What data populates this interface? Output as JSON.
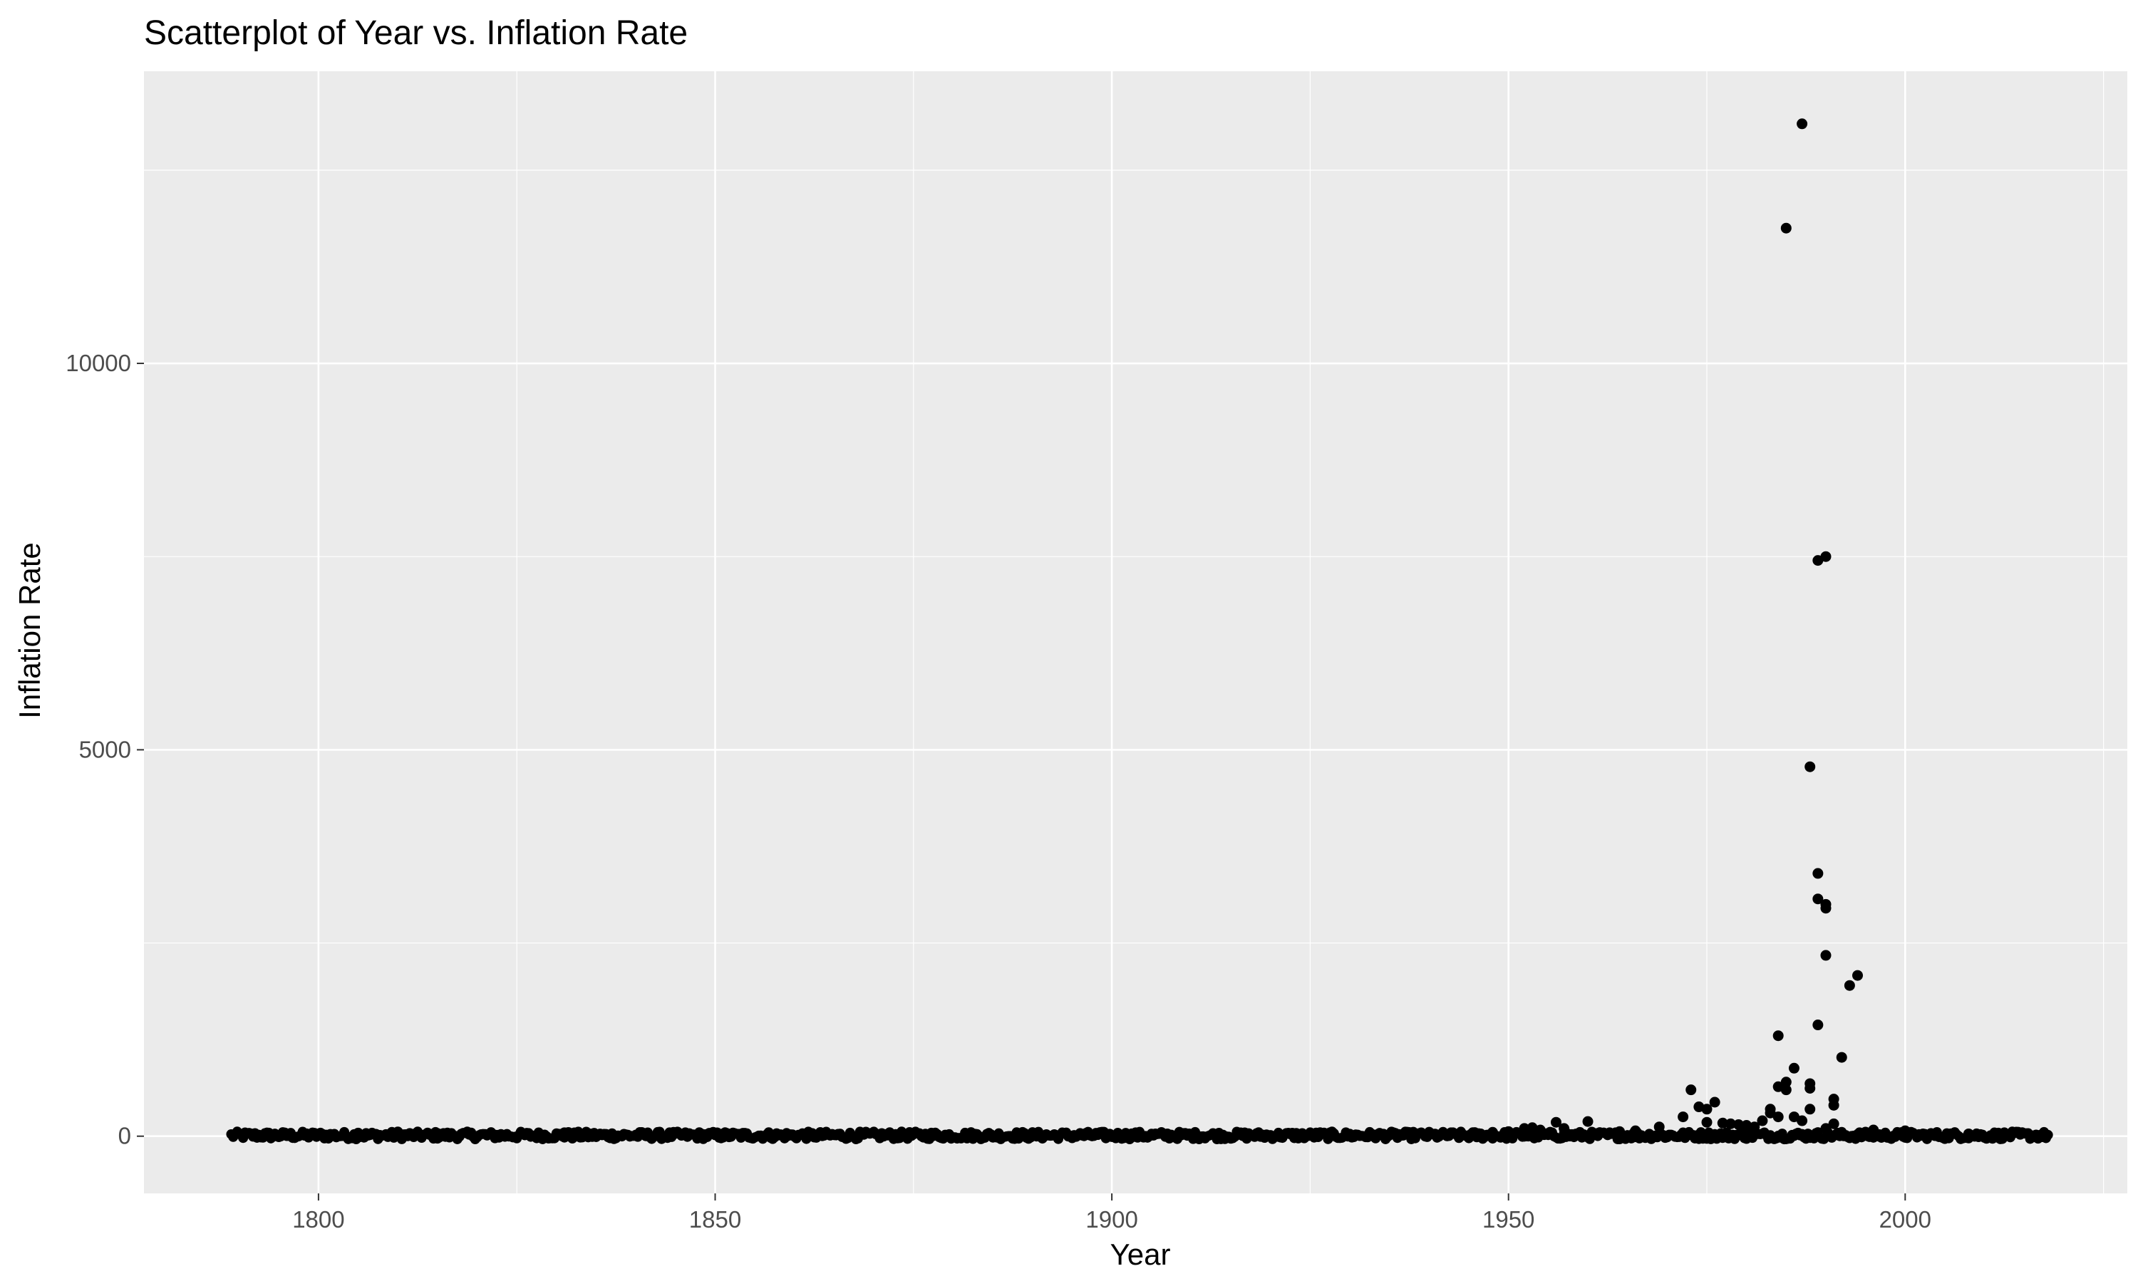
{
  "chart_data": {
    "type": "scatter",
    "title": "Scatterplot of Year vs. Inflation Rate",
    "xlabel": "Year",
    "ylabel": "Inflation Rate",
    "xlim": [
      1778,
      2028
    ],
    "ylim": [
      -740,
      13780
    ],
    "x_ticks": [
      1800,
      1850,
      1900,
      1950,
      2000
    ],
    "x_tick_labels": [
      "1800",
      "1850",
      "1900",
      "1950",
      "2000"
    ],
    "y_ticks": [
      0,
      5000,
      10000
    ],
    "y_tick_labels": [
      "0",
      "5000",
      "10000"
    ],
    "x_minor_ticks": [
      1775,
      1825,
      1875,
      1925,
      1975,
      2025
    ],
    "y_minor_ticks": [
      2500,
      7500,
      12500
    ],
    "grid": true,
    "legend": "none",
    "colors": {
      "panel": "#EBEBEB",
      "grid": "#FFFFFF",
      "point": "#000000"
    },
    "baseline_points": {
      "x_range": [
        1789,
        2018
      ],
      "y_range": [
        -40,
        60
      ]
    },
    "points": [
      {
        "x": 1805,
        "y": 40
      },
      {
        "x": 1810,
        "y": 55
      },
      {
        "x": 1815,
        "y": 35
      },
      {
        "x": 1831,
        "y": 45
      },
      {
        "x": 1851,
        "y": 30
      },
      {
        "x": 1937,
        "y": 35
      },
      {
        "x": 1944,
        "y": 40
      },
      {
        "x": 1948,
        "y": 50
      },
      {
        "x": 1950,
        "y": 60
      },
      {
        "x": 1952,
        "y": 100
      },
      {
        "x": 1953,
        "y": 110
      },
      {
        "x": 1954,
        "y": 80
      },
      {
        "x": 1956,
        "y": 180
      },
      {
        "x": 1957,
        "y": 100
      },
      {
        "x": 1960,
        "y": 190
      },
      {
        "x": 1964,
        "y": 60
      },
      {
        "x": 1966,
        "y": 70
      },
      {
        "x": 1969,
        "y": 120
      },
      {
        "x": 1972,
        "y": 250
      },
      {
        "x": 1973,
        "y": 600
      },
      {
        "x": 1974,
        "y": 380
      },
      {
        "x": 1975,
        "y": 350
      },
      {
        "x": 1976,
        "y": 440
      },
      {
        "x": 1975,
        "y": 180
      },
      {
        "x": 1977,
        "y": 170
      },
      {
        "x": 1978,
        "y": 160
      },
      {
        "x": 1979,
        "y": 150
      },
      {
        "x": 1980,
        "y": 140
      },
      {
        "x": 1981,
        "y": 120
      },
      {
        "x": 1982,
        "y": 200
      },
      {
        "x": 1983,
        "y": 300
      },
      {
        "x": 1983,
        "y": 350
      },
      {
        "x": 1984,
        "y": 1300
      },
      {
        "x": 1984,
        "y": 640
      },
      {
        "x": 1984,
        "y": 250
      },
      {
        "x": 1985,
        "y": 11750
      },
      {
        "x": 1985,
        "y": 700
      },
      {
        "x": 1985,
        "y": 600
      },
      {
        "x": 1986,
        "y": 880
      },
      {
        "x": 1986,
        "y": 250
      },
      {
        "x": 1987,
        "y": 13100
      },
      {
        "x": 1987,
        "y": 200
      },
      {
        "x": 1988,
        "y": 4780
      },
      {
        "x": 1988,
        "y": 680
      },
      {
        "x": 1988,
        "y": 620
      },
      {
        "x": 1988,
        "y": 350
      },
      {
        "x": 1989,
        "y": 7450
      },
      {
        "x": 1989,
        "y": 3400
      },
      {
        "x": 1989,
        "y": 3070
      },
      {
        "x": 1989,
        "y": 1440
      },
      {
        "x": 1990,
        "y": 7500
      },
      {
        "x": 1990,
        "y": 3000
      },
      {
        "x": 1990,
        "y": 2950
      },
      {
        "x": 1990,
        "y": 2340
      },
      {
        "x": 1990,
        "y": 100
      },
      {
        "x": 1991,
        "y": 480
      },
      {
        "x": 1991,
        "y": 400
      },
      {
        "x": 1991,
        "y": 160
      },
      {
        "x": 1992,
        "y": 1020
      },
      {
        "x": 1993,
        "y": 1950
      },
      {
        "x": 1994,
        "y": 2080
      },
      {
        "x": 1995,
        "y": 50
      },
      {
        "x": 1996,
        "y": 80
      },
      {
        "x": 2000,
        "y": 70
      },
      {
        "x": 2008,
        "y": 30
      }
    ]
  }
}
